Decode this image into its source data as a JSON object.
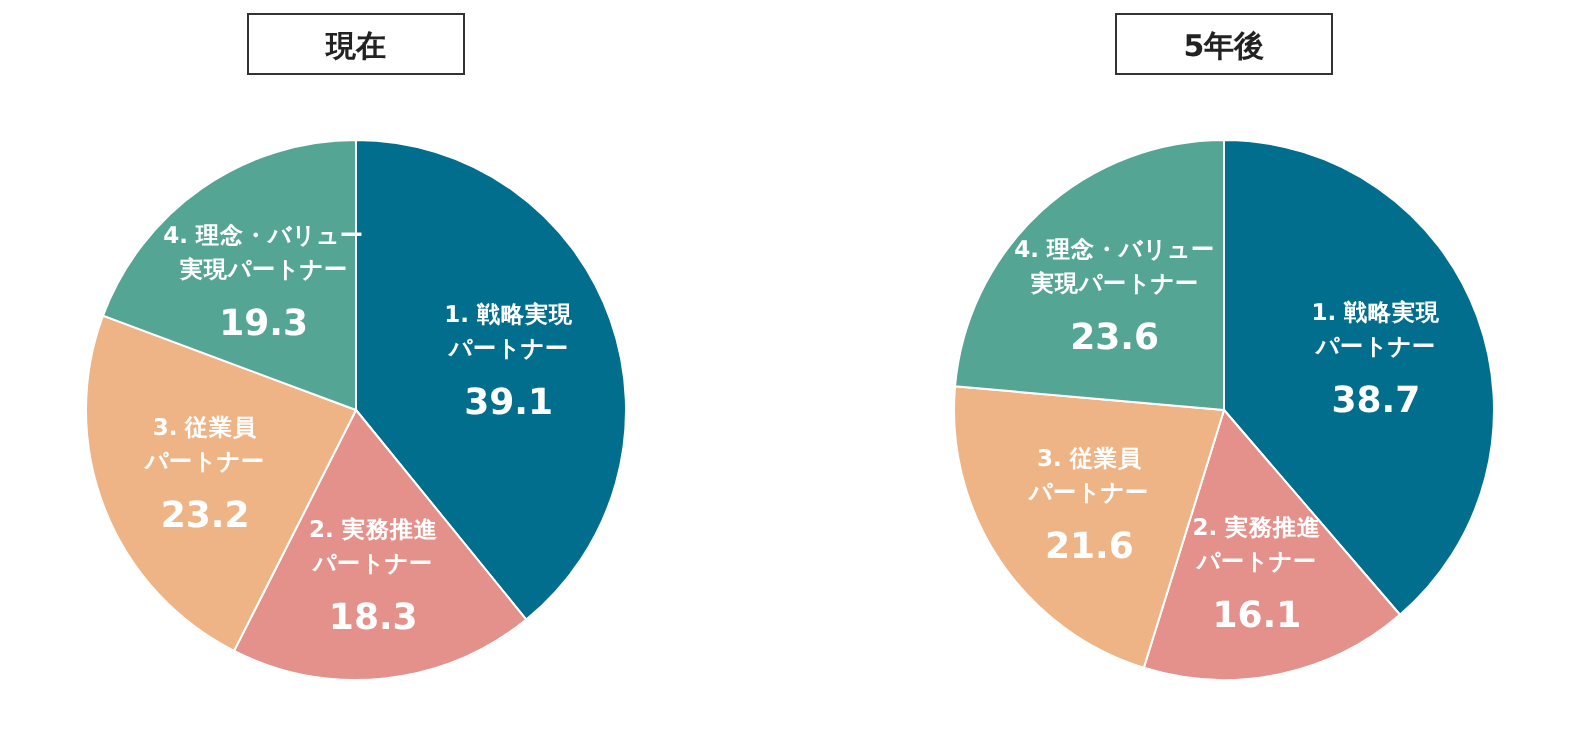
{
  "chart_data": [
    {
      "type": "pie",
      "title": "現在",
      "categories": [
        "1. 戦略実現パートナー",
        "2. 実務推進パートナー",
        "3. 従業員パートナー",
        "4. 理念・バリュー実現パートナー"
      ],
      "values": [
        39.1,
        18.3,
        23.2,
        19.3
      ],
      "colors": [
        "#006e8c",
        "#e3918a",
        "#eeb486",
        "#55a595"
      ],
      "data_labels": true
    },
    {
      "type": "pie",
      "title": "5年後",
      "categories": [
        "1. 戦略実現パートナー",
        "2. 実務推進パートナー",
        "3. 従業員パートナー",
        "4. 理念・バリュー実現パートナー"
      ],
      "values": [
        38.7,
        16.1,
        21.6,
        23.6
      ],
      "colors": [
        "#006e8c",
        "#e3918a",
        "#eeb486",
        "#55a595"
      ],
      "data_labels": true
    }
  ]
}
